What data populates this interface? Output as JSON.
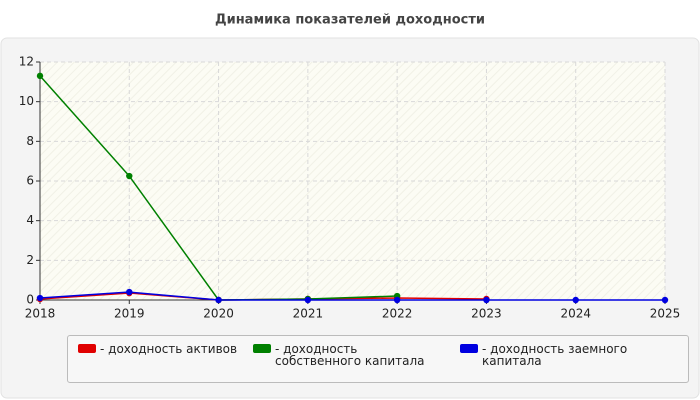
{
  "chart_data": {
    "type": "line",
    "title": "Динамика показателей доходности",
    "x": [
      2018,
      2019,
      2020,
      2021,
      2022,
      2023,
      2024,
      2025
    ],
    "series": [
      {
        "name": "- доходность активов",
        "color": "#e00000",
        "values": [
          0.05,
          0.35,
          0,
          0.05,
          0.1,
          0.05,
          null,
          null
        ]
      },
      {
        "name": "- доходность собственного капитала",
        "color": "#008000",
        "values": [
          11.3,
          6.25,
          0,
          0.05,
          0.2,
          null,
          null,
          null
        ]
      },
      {
        "name": "- доходность заемного капитала",
        "color": "#0000e0",
        "values": [
          0.1,
          0.4,
          0,
          0,
          0,
          0,
          0,
          0
        ]
      }
    ],
    "xlim": [
      2018,
      2025
    ],
    "xticks": [
      2018,
      2019,
      2020,
      2021,
      2022,
      2023,
      2024,
      2025
    ],
    "ylim": [
      0,
      12
    ],
    "yticks": [
      0,
      2,
      4,
      6,
      8,
      10,
      12
    ],
    "grid": true
  }
}
